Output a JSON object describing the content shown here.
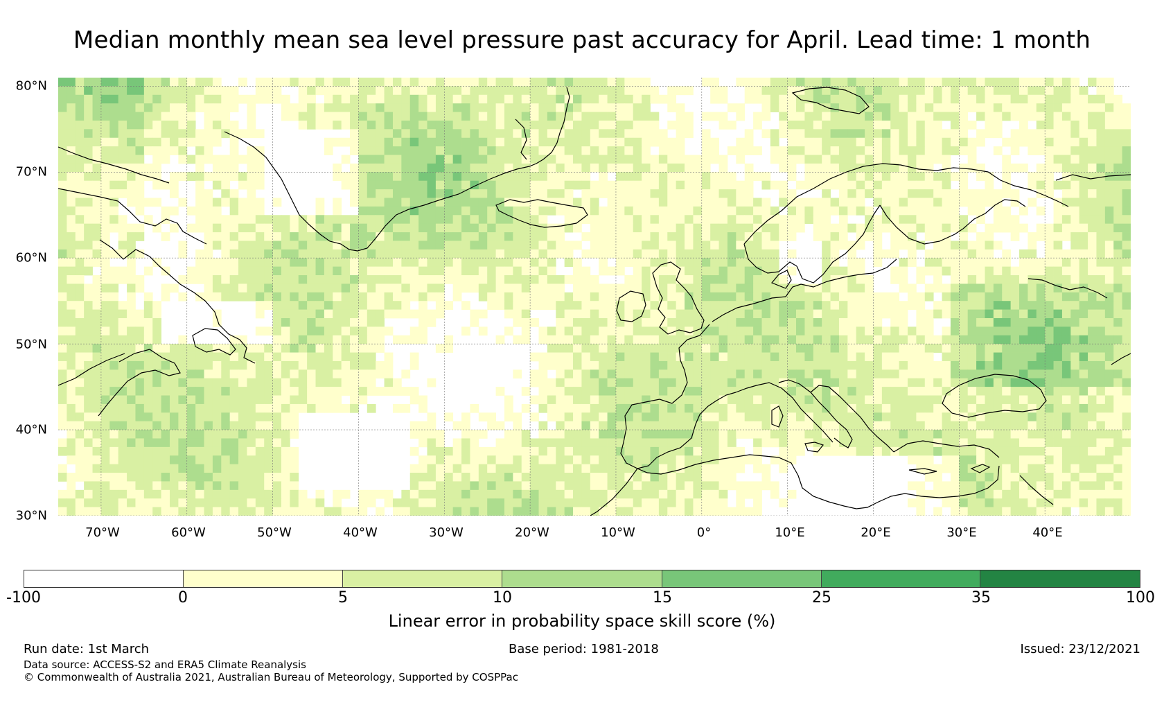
{
  "title": "Median monthly mean sea level pressure past accuracy for April. Lead time: 1 month",
  "map": {
    "lat_labels": [
      "80°N",
      "70°N",
      "60°N",
      "50°N",
      "40°N",
      "30°N"
    ],
    "lon_labels": [
      "70°W",
      "60°W",
      "50°W",
      "40°W",
      "30°W",
      "20°W",
      "10°W",
      "0°",
      "10°E",
      "20°E",
      "30°E",
      "40°E"
    ],
    "lat_range": [
      30,
      81
    ],
    "lon_range": [
      -75,
      50
    ]
  },
  "colorbar": {
    "ticks": [
      "-100",
      "0",
      "5",
      "10",
      "15",
      "25",
      "35",
      "100"
    ],
    "colors": [
      "#ffffff",
      "#ffffcc",
      "#d9f0a3",
      "#addd8e",
      "#78c679",
      "#41ab5d",
      "#238443"
    ],
    "label": "Linear error in probability space skill score (%)"
  },
  "footer": {
    "run_date": "Run date: 1st March",
    "base_period": "Base period: 1981-2018",
    "issued": "Issued: 23/12/2021",
    "data_source": "Data source: ACCESS-S2 and ERA5 Climate Reanalysis",
    "copyright": "© Commonwealth of Australia 2021, Australian Bureau of Meteorology, Supported by COSPPac"
  }
}
